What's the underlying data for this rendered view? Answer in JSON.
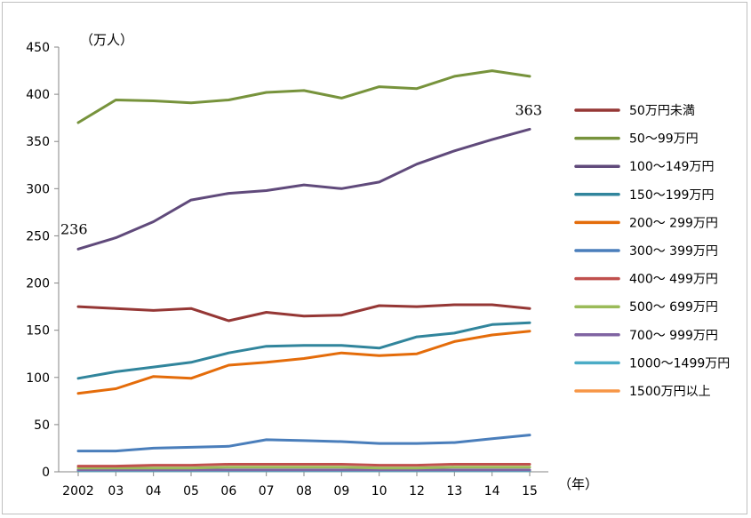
{
  "chart_data": {
    "type": "line",
    "y_unit_label": "（万人）",
    "x_unit_label": "（年）",
    "ylim": [
      0,
      450
    ],
    "y_ticks": [
      0,
      50,
      100,
      150,
      200,
      250,
      300,
      350,
      400,
      450
    ],
    "categories": [
      "2002",
      "03",
      "04",
      "05",
      "06",
      "07",
      "08",
      "09",
      "10",
      "12",
      "13",
      "14",
      "15"
    ],
    "grid": false,
    "legend_position": "right",
    "series": [
      {
        "name": "50万円未満",
        "color": "#953735",
        "values": [
          175,
          173,
          171,
          173,
          160,
          169,
          165,
          166,
          176,
          175,
          177,
          177,
          173
        ]
      },
      {
        "name": "50～99万円",
        "color": "#77933c",
        "values": [
          370,
          394,
          393,
          391,
          394,
          402,
          404,
          396,
          408,
          406,
          419,
          425,
          419
        ]
      },
      {
        "name": "100～149万円",
        "color": "#604a7b",
        "values": [
          236,
          248,
          265,
          288,
          295,
          298,
          304,
          300,
          307,
          326,
          340,
          352,
          363
        ]
      },
      {
        "name": "150～199万円",
        "color": "#31859c",
        "values": [
          99,
          106,
          111,
          116,
          126,
          133,
          134,
          134,
          131,
          143,
          147,
          156,
          158
        ]
      },
      {
        "name": "200～ 299万円",
        "color": "#e46c0a",
        "values": [
          83,
          88,
          101,
          99,
          113,
          116,
          120,
          126,
          123,
          125,
          138,
          145,
          149
        ]
      },
      {
        "name": "300～ 399万円",
        "color": "#4a7ebb",
        "values": [
          22,
          22,
          25,
          26,
          27,
          34,
          33,
          32,
          30,
          30,
          31,
          35,
          39
        ]
      },
      {
        "name": "400～ 499万円",
        "color": "#c0504d",
        "values": [
          6,
          6,
          7,
          7,
          8,
          8,
          8,
          8,
          7,
          7,
          8,
          8,
          8
        ]
      },
      {
        "name": "500～ 699万円",
        "color": "#9bbb59",
        "values": [
          4,
          4,
          4,
          4,
          5,
          5,
          5,
          5,
          4,
          4,
          5,
          5,
          5
        ]
      },
      {
        "name": "700～ 999万円",
        "color": "#8064a2",
        "values": [
          2,
          2,
          2,
          2,
          2,
          2,
          2,
          2,
          2,
          2,
          2,
          2,
          2
        ]
      },
      {
        "name": "1000～1499万円",
        "color": "#4bacc6",
        "values": [
          1,
          1,
          1,
          1,
          1,
          1,
          1,
          1,
          1,
          1,
          1,
          1,
          1
        ]
      },
      {
        "name": "1500万円以上",
        "color": "#f79646",
        "values": [
          1,
          1,
          1,
          1,
          1,
          1,
          1,
          1,
          1,
          1,
          1,
          1,
          1
        ]
      }
    ],
    "annotations": [
      {
        "text": "236",
        "series": 2,
        "index": 0
      },
      {
        "text": "363",
        "series": 2,
        "index": 12
      }
    ]
  }
}
